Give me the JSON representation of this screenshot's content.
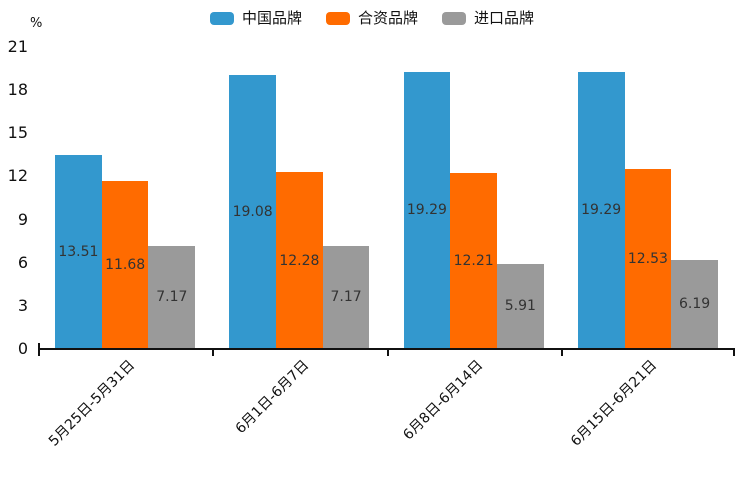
{
  "chart_data": {
    "type": "bar",
    "title": "",
    "xlabel": "",
    "ylabel": "%",
    "ylim": [
      0,
      21
    ],
    "yticks": [
      0,
      3,
      6,
      9,
      12,
      15,
      18,
      21
    ],
    "grid": false,
    "legend_position": "top-center",
    "value_labels": "centered-inside-bars",
    "categories": [
      "5月25日-5月31日",
      "6月1日-6月7日",
      "6月8日-6月14日",
      "6月15日-6月21日"
    ],
    "series": [
      {
        "name": "中国品牌",
        "color": "#3398CE",
        "values": [
          13.51,
          19.08,
          19.29,
          19.29
        ]
      },
      {
        "name": "合资品牌",
        "color": "#FF6B00",
        "values": [
          11.68,
          12.28,
          12.21,
          12.53
        ]
      },
      {
        "name": "进口品牌",
        "color": "#9A9A9A",
        "values": [
          7.17,
          7.17,
          5.91,
          6.19
        ]
      }
    ],
    "colors": {
      "axis": "#111111",
      "tick_text": "#111111",
      "bar_value_text": "#333333",
      "background": "#ffffff"
    }
  }
}
